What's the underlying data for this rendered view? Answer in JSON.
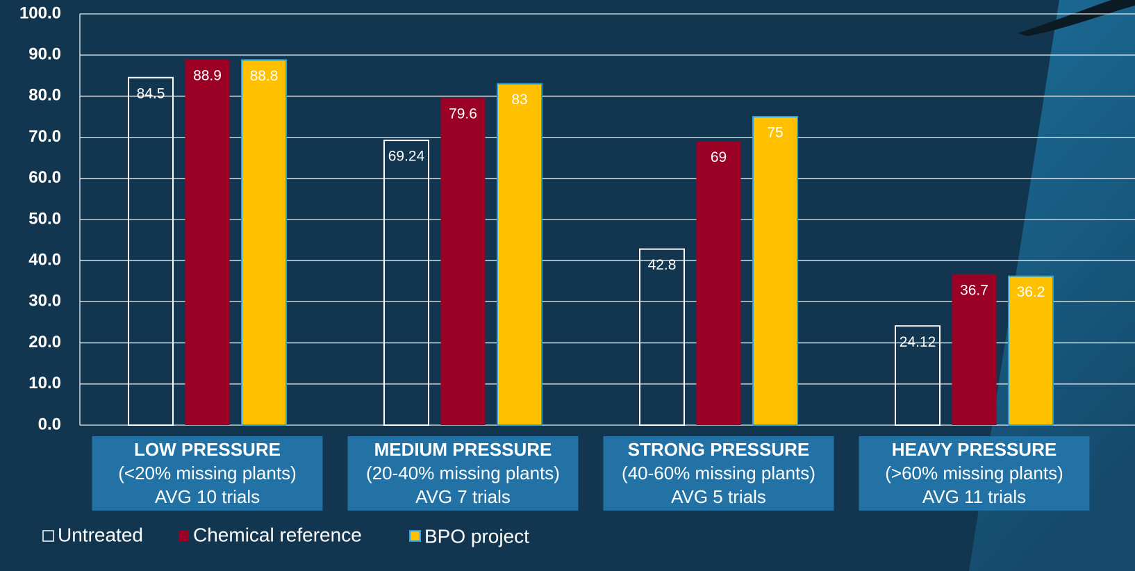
{
  "chart_data": {
    "type": "bar",
    "categories": [
      "LOW PRESSURE",
      "MEDIUM PRESSURE",
      "STRONG PRESSURE",
      "HEAVY PRESSURE"
    ],
    "category_subtitles": [
      "(<20% missing plants)",
      "(20-40% missing plants)",
      "(40-60% missing plants)",
      "(>60% missing plants)"
    ],
    "category_notes": [
      "AVG 10 trials",
      "AVG 7 trials",
      "AVG 5 trials",
      "AVG 11 trials"
    ],
    "series": [
      {
        "name": "Untreated",
        "color": "#ffffff",
        "outline": true,
        "values": [
          84.5,
          69.24,
          42.8,
          24.12
        ]
      },
      {
        "name": "Chemical reference",
        "color": "#9b0025",
        "values": [
          88.9,
          79.6,
          69,
          36.7
        ]
      },
      {
        "name": "BPO project",
        "color": "#ffc000",
        "values": [
          88.8,
          83,
          75,
          36.2
        ]
      }
    ],
    "ylim": [
      0,
      100
    ],
    "yticks": [
      {
        "value": 0,
        "label": "0.0"
      },
      {
        "value": 10,
        "label": "10.0"
      },
      {
        "value": 20,
        "label": "20.0"
      },
      {
        "value": 30,
        "label": "30.0"
      },
      {
        "value": 40,
        "label": "40.0"
      },
      {
        "value": 50,
        "label": "50.0"
      },
      {
        "value": 60,
        "label": "60.0"
      },
      {
        "value": 70,
        "label": "70.0"
      },
      {
        "value": 80,
        "label": "80.0"
      },
      {
        "value": 90,
        "label": "90.0"
      },
      {
        "value": 100,
        "label": "100.0"
      }
    ],
    "grid": true
  }
}
